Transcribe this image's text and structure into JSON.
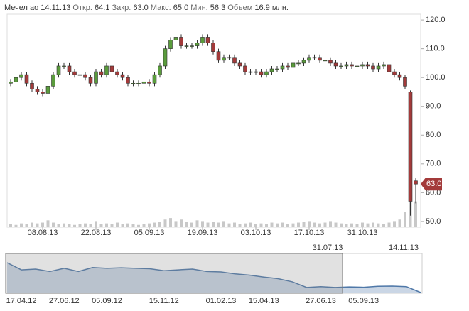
{
  "header": {
    "name": "Мечел ао",
    "date": "14.11.13",
    "open_label": "Откр.",
    "open": "64.1",
    "close_label": "Закр.",
    "close": "63.0",
    "high_label": "Макс.",
    "high": "65.0",
    "low_label": "Мин.",
    "low": "56.3",
    "volume_label": "Объем",
    "volume": "16.9 млн."
  },
  "chart_data": [
    {
      "type": "candlestick",
      "categories": [
        null,
        null,
        null,
        null,
        null,
        null,
        "08.08.13",
        null,
        null,
        null,
        null,
        null,
        null,
        null,
        null,
        null,
        "22.08.13",
        null,
        null,
        null,
        null,
        null,
        null,
        null,
        null,
        null,
        "05.09.13",
        null,
        null,
        null,
        null,
        null,
        null,
        null,
        null,
        null,
        "19.09.13",
        null,
        null,
        null,
        null,
        null,
        null,
        null,
        null,
        null,
        "03.10.13",
        null,
        null,
        null,
        null,
        null,
        null,
        null,
        null,
        null,
        "17.10.13",
        null,
        null,
        null,
        null,
        null,
        null,
        null,
        null,
        null,
        "31.10.13",
        null,
        null,
        null,
        null,
        null,
        null,
        null,
        null,
        null,
        null
      ],
      "open": [
        98,
        98.5,
        100,
        101,
        98,
        96,
        95,
        94.5,
        97,
        101,
        104,
        104,
        102,
        101,
        101,
        100,
        98,
        102,
        101,
        104,
        102,
        101,
        100,
        98,
        98,
        98,
        98.5,
        98,
        101,
        104,
        110,
        113,
        114,
        111,
        111,
        111,
        112,
        114,
        112,
        109,
        106,
        107,
        107,
        105,
        104,
        102,
        102,
        102,
        101,
        102,
        103,
        103,
        104,
        103.5,
        105,
        105,
        106,
        107,
        107,
        106,
        106,
        105,
        104,
        104,
        104.5,
        104,
        104,
        104.5,
        104,
        103,
        104,
        104.5,
        102,
        101,
        100,
        95,
        64.1
      ],
      "high": [
        99.5,
        101,
        102,
        102,
        99,
        97,
        96,
        98,
        102,
        105,
        105,
        105,
        103,
        102,
        102,
        101,
        103,
        103,
        105,
        105,
        103,
        102,
        101,
        99,
        99,
        99.5,
        99.5,
        102,
        105,
        111,
        114,
        115,
        115,
        112,
        112,
        113,
        115,
        115,
        113,
        110,
        108,
        108,
        108,
        106,
        105,
        103,
        103,
        103,
        103,
        104,
        104,
        105,
        105,
        106,
        106,
        107,
        108,
        108,
        108,
        107,
        107,
        106,
        105,
        105.5,
        105.5,
        105,
        105.5,
        105.5,
        105,
        105,
        105.5,
        105.5,
        103,
        102,
        101,
        95.5,
        65
      ],
      "low": [
        97,
        97.5,
        99,
        97,
        95,
        94,
        93.5,
        93.5,
        96,
        100,
        103,
        101,
        100,
        100,
        99,
        97,
        97,
        100,
        100,
        101,
        100,
        99,
        97,
        97,
        97,
        97,
        97,
        97,
        100,
        103,
        109,
        112,
        110,
        110,
        110,
        110,
        111,
        111,
        108,
        105,
        105,
        106,
        104,
        103,
        101,
        101,
        101,
        100,
        100,
        101,
        102,
        102,
        102.5,
        102.5,
        104,
        104,
        105,
        106,
        105,
        105,
        104,
        103,
        103,
        103,
        103,
        103,
        103,
        103,
        102,
        102,
        103,
        101,
        100,
        99,
        96,
        52,
        56.3
      ],
      "close": [
        98.5,
        100,
        101,
        98,
        96,
        95,
        94.5,
        97,
        101,
        104,
        104,
        102,
        101,
        101,
        100,
        98,
        102,
        101,
        104,
        102,
        101,
        100,
        98,
        98,
        98,
        98.5,
        98,
        101,
        104,
        110,
        113,
        114,
        111,
        111,
        111,
        112,
        114,
        112,
        109,
        106,
        107,
        107,
        105,
        104,
        102,
        102,
        102,
        101,
        102,
        103,
        103,
        104,
        103.5,
        105,
        105,
        106,
        107,
        107,
        106,
        106,
        105,
        104,
        104,
        104.5,
        104,
        104,
        104.5,
        104,
        103,
        104,
        104.5,
        102,
        101,
        100,
        97,
        57,
        63
      ],
      "volume": [
        2,
        1.5,
        2.5,
        2,
        3,
        2.5,
        3,
        4.5,
        3,
        2,
        2.5,
        2,
        1.5,
        2,
        2.5,
        2,
        4,
        2,
        2.5,
        2,
        3,
        2,
        2.5,
        2,
        1.5,
        2,
        2.5,
        3,
        3.5,
        5,
        6,
        4,
        5,
        3.5,
        3,
        4.5,
        4,
        3,
        3.5,
        3,
        4,
        2.5,
        3,
        2,
        2.5,
        3,
        2,
        2.5,
        2,
        3,
        2.5,
        3,
        2,
        2.5,
        3,
        3.5,
        4,
        3,
        2.5,
        3,
        4,
        3,
        2.5,
        2,
        2.5,
        2,
        3,
        2.5,
        3,
        2.5,
        2,
        3,
        4,
        5,
        10,
        27,
        16.9
      ],
      "up_color": "#5a9c3c",
      "down_color": "#a33a3a",
      "volume_color": "#c8c8c8",
      "ylim": [
        48,
        122
      ],
      "yticks": [
        {
          "value": 50,
          "label": "50.0"
        },
        {
          "value": 60,
          "label": "60.0"
        },
        {
          "value": 70,
          "label": "70.0"
        },
        {
          "value": 80,
          "label": "80.0"
        },
        {
          "value": 90,
          "label": "90.0"
        },
        {
          "value": 100,
          "label": "100.0"
        },
        {
          "value": 110,
          "label": "110.0"
        },
        {
          "value": 120,
          "label": "120.0"
        }
      ]
    },
    {
      "type": "area",
      "categories": [
        null,
        "17.04.12",
        null,
        null,
        "27.06.12",
        null,
        null,
        "05.09.12",
        null,
        null,
        null,
        "15.11.12",
        null,
        null,
        null,
        "01.02.13",
        null,
        null,
        "15.04.13",
        null,
        null,
        null,
        "27.06.13",
        null,
        null,
        "05.09.13",
        null,
        null,
        null,
        null
      ],
      "values": [
        250,
        205,
        210,
        195,
        215,
        195,
        220,
        215,
        218,
        215,
        212,
        200,
        205,
        210,
        195,
        192,
        180,
        172,
        160,
        150,
        130,
        95,
        100,
        95,
        98,
        96,
        102,
        103,
        100,
        63
      ],
      "color": "#4f78a8",
      "window": [
        "31.07.13",
        "14.11.13"
      ]
    }
  ]
}
